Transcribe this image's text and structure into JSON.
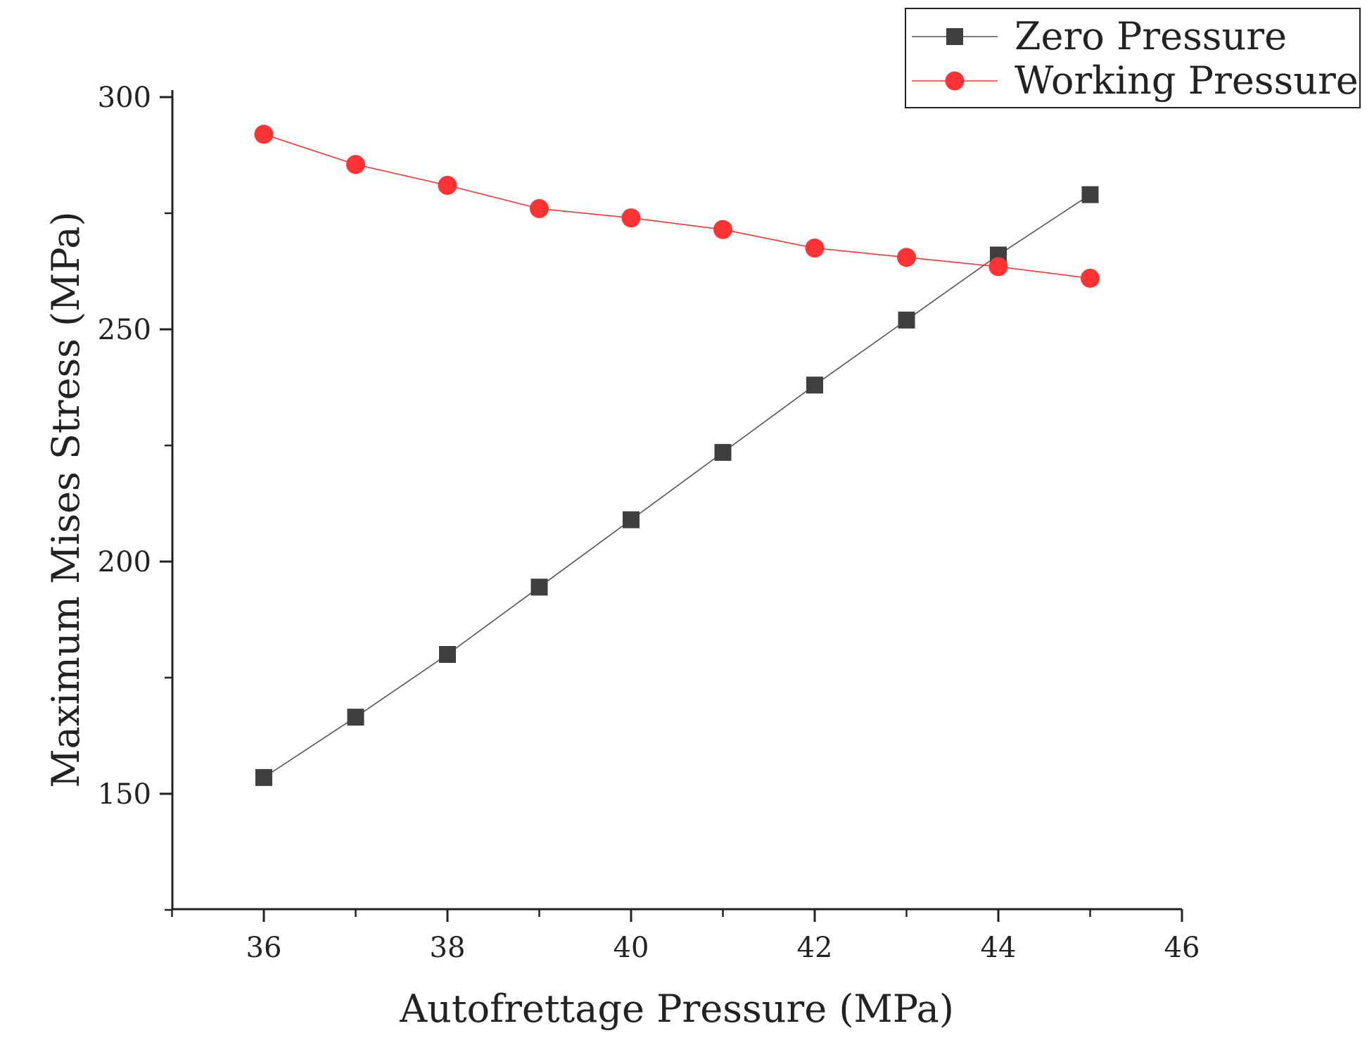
{
  "chart_data": {
    "type": "line",
    "title": "",
    "xlabel": "Autofrettage Pressure (MPa)",
    "ylabel": "Maximum Mises Stress (MPa)",
    "xlim": [
      35,
      46
    ],
    "ylim": [
      125,
      300
    ],
    "xticks": [
      36,
      38,
      40,
      42,
      44,
      46
    ],
    "xminor": [
      35,
      37,
      39,
      41,
      43,
      45
    ],
    "yticks": [
      150,
      200,
      250,
      300
    ],
    "yminor": [
      125,
      175,
      225,
      275
    ],
    "grid": false,
    "legend_position": "top-right",
    "x": [
      36,
      37,
      38,
      39,
      40,
      41,
      42,
      43,
      44,
      45
    ],
    "series": [
      {
        "name": "Zero Pressure",
        "marker": "square",
        "color": "#3f3f3f",
        "line_color": "#555555",
        "values": [
          153.5,
          166.5,
          180,
          194.5,
          209,
          223.5,
          238,
          252,
          266,
          279
        ]
      },
      {
        "name": "Working Pressure",
        "marker": "circle",
        "color": "#ff3333",
        "line_color": "#ff3333",
        "values": [
          292,
          285.5,
          281,
          276,
          274,
          271.5,
          267.5,
          265.5,
          263.5,
          261
        ]
      }
    ]
  }
}
